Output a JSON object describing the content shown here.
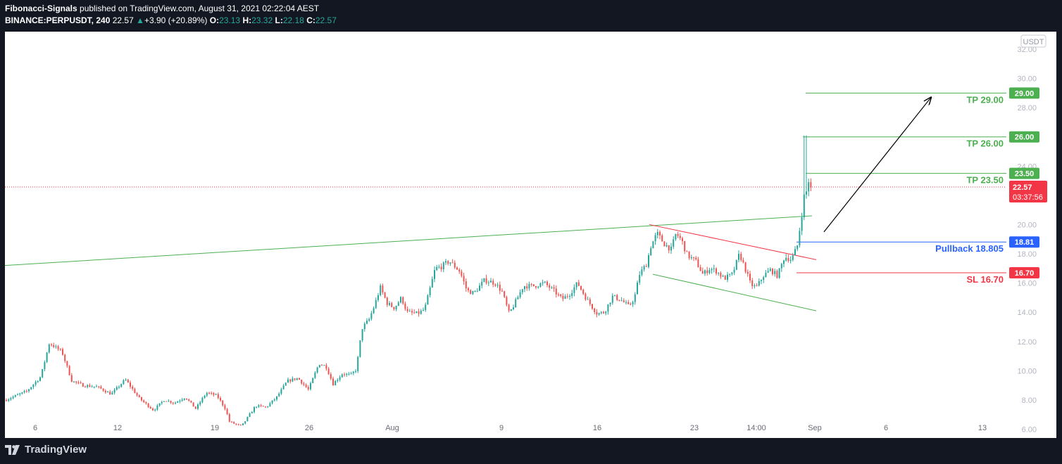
{
  "header": {
    "author": "Fibonacci-Signals",
    "published": "published on TradingView.com, August 31, 2021 02:22:04 AEST",
    "symbol": "BINANCE:PERPUSDT, 240",
    "last": "22.57",
    "change": "+3.90 (+20.89%)",
    "o_label": "O:",
    "o": "23.13",
    "h_label": "H:",
    "h": "23.32",
    "l_label": "L:",
    "l": "22.18",
    "c_label": "C:",
    "c": "22.57"
  },
  "footer": {
    "brand": "TradingView"
  },
  "chart_data": {
    "type": "candlestick",
    "currency_label": "USDT",
    "y_ticks": [
      "32.00",
      "30.00",
      "28.00",
      "24.00",
      "20.00",
      "18.00",
      "16.00",
      "14.00",
      "12.00",
      "10.00",
      "8.00",
      "6.00"
    ],
    "x_ticks": [
      "6",
      "12",
      "19",
      "26",
      "Aug",
      "9",
      "16",
      "23",
      "14:00",
      "Sep",
      "6",
      "13"
    ],
    "ylim": [
      5.4,
      33.2
    ],
    "levels": [
      {
        "name": "TP 29.00",
        "tag": "29.00",
        "value": 29.0,
        "color": "#4caf50"
      },
      {
        "name": "TP 26.00",
        "tag": "26.00",
        "value": 26.0,
        "color": "#4caf50"
      },
      {
        "name": "TP 23.50",
        "tag": "23.50",
        "value": 23.5,
        "color": "#4caf50"
      },
      {
        "name": "Pullback 18.805",
        "tag": "18.81",
        "value": 18.81,
        "color": "#2962ff"
      },
      {
        "name": "SL 16.70",
        "tag": "16.70",
        "value": 16.7,
        "color": "#f23645"
      }
    ],
    "last_price": {
      "value": 22.57,
      "label": "22.57",
      "countdown": "03:37:56",
      "color": "#f23645"
    },
    "trendlines": [
      {
        "name": "support-rising",
        "from": [
          0,
          17.2
        ],
        "to": [
          1146,
          20.6
        ],
        "color": "#4caf50"
      },
      {
        "name": "channel-upper",
        "from": [
          915,
          20.0
        ],
        "to": [
          1152,
          17.6
        ],
        "color": "#f23645"
      },
      {
        "name": "channel-lower",
        "from": [
          920,
          16.6
        ],
        "to": [
          1152,
          14.1
        ],
        "color": "#4caf50"
      }
    ],
    "projection_arrow": {
      "from": [
        1163,
        19.5
      ],
      "to": [
        1315,
        28.7
      ]
    },
    "path_points": [
      [
        0,
        8.0
      ],
      [
        30,
        8.6
      ],
      [
        50,
        9.6
      ],
      [
        62,
        11.9
      ],
      [
        80,
        11.3
      ],
      [
        94,
        9.3
      ],
      [
        110,
        9.0
      ],
      [
        130,
        8.9
      ],
      [
        150,
        8.4
      ],
      [
        170,
        9.4
      ],
      [
        190,
        8.1
      ],
      [
        210,
        7.3
      ],
      [
        225,
        8.0
      ],
      [
        240,
        7.8
      ],
      [
        255,
        8.2
      ],
      [
        270,
        7.4
      ],
      [
        285,
        8.5
      ],
      [
        300,
        8.3
      ],
      [
        312,
        7.4
      ],
      [
        318,
        6.5
      ],
      [
        335,
        6.2
      ],
      [
        355,
        7.6
      ],
      [
        370,
        7.5
      ],
      [
        385,
        8.2
      ],
      [
        400,
        9.3
      ],
      [
        415,
        9.5
      ],
      [
        430,
        8.7
      ],
      [
        445,
        10.5
      ],
      [
        455,
        10.3
      ],
      [
        465,
        9.1
      ],
      [
        478,
        9.8
      ],
      [
        490,
        9.7
      ],
      [
        498,
        10.1
      ],
      [
        506,
        12.9
      ],
      [
        516,
        13.5
      ],
      [
        524,
        14.5
      ],
      [
        532,
        15.7
      ],
      [
        542,
        14.6
      ],
      [
        552,
        14.3
      ],
      [
        562,
        15.0
      ],
      [
        570,
        14.0
      ],
      [
        585,
        13.9
      ],
      [
        595,
        14.2
      ],
      [
        602,
        15.5
      ],
      [
        610,
        17.0
      ],
      [
        618,
        17.1
      ],
      [
        630,
        17.5
      ],
      [
        645,
        16.8
      ],
      [
        655,
        15.5
      ],
      [
        665,
        15.3
      ],
      [
        680,
        16.2
      ],
      [
        695,
        16.0
      ],
      [
        705,
        15.4
      ],
      [
        715,
        13.9
      ],
      [
        725,
        14.8
      ],
      [
        735,
        15.8
      ],
      [
        750,
        15.8
      ],
      [
        765,
        16.0
      ],
      [
        780,
        15.4
      ],
      [
        790,
        14.9
      ],
      [
        800,
        15.2
      ],
      [
        812,
        16.0
      ],
      [
        825,
        14.9
      ],
      [
        840,
        13.9
      ],
      [
        850,
        14.0
      ],
      [
        862,
        15.1
      ],
      [
        875,
        14.8
      ],
      [
        885,
        14.4
      ],
      [
        893,
        15.0
      ],
      [
        900,
        16.6
      ],
      [
        910,
        17.3
      ],
      [
        916,
        18.5
      ],
      [
        925,
        19.4
      ],
      [
        935,
        18.7
      ],
      [
        945,
        18.3
      ],
      [
        952,
        19.4
      ],
      [
        960,
        18.9
      ],
      [
        968,
        17.9
      ],
      [
        980,
        17.5
      ],
      [
        990,
        16.6
      ],
      [
        1000,
        17.0
      ],
      [
        1010,
        16.8
      ],
      [
        1020,
        16.3
      ],
      [
        1032,
        16.6
      ],
      [
        1042,
        18.0
      ],
      [
        1050,
        17.0
      ],
      [
        1058,
        15.9
      ],
      [
        1066,
        15.7
      ],
      [
        1076,
        16.5
      ],
      [
        1086,
        16.9
      ],
      [
        1096,
        16.5
      ],
      [
        1106,
        17.8
      ],
      [
        1116,
        17.6
      ],
      [
        1124,
        18.5
      ],
      [
        1130,
        20.5
      ],
      [
        1134,
        22.0
      ],
      [
        1136,
        21.8
      ],
      [
        1138,
        22.7
      ],
      [
        1141,
        23.1
      ],
      [
        1144,
        22.57
      ]
    ]
  }
}
